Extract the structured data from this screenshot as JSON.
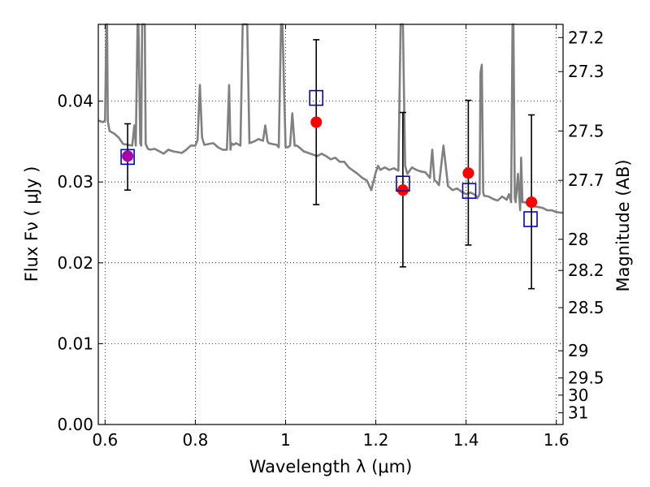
{
  "chart_data": {
    "type": "scatter",
    "title": "",
    "xlabel": "Wavelength  λ (μm)",
    "ylabel": "Flux  Fν  ( μJy )",
    "ylabel_right": "Magnitude (AB)",
    "xlim": [
      0.585,
      1.615
    ],
    "ylim": [
      0.0,
      0.0495
    ],
    "grid": true,
    "x_ticks": [
      0.6,
      0.8,
      1.0,
      1.2,
      1.4,
      1.6
    ],
    "x_tick_labels": [
      "0.6",
      "0.8",
      "1",
      "1.2",
      "1.4",
      "1.6"
    ],
    "y_ticks": [
      0.0,
      0.01,
      0.02,
      0.03,
      0.04
    ],
    "y_tick_labels": [
      "0.00",
      "0.01",
      "0.02",
      "0.03",
      "0.04"
    ],
    "mag_ticks": [
      27.2,
      27.3,
      27.5,
      27.7,
      28,
      28.2,
      28.5,
      29,
      29.5,
      30,
      31
    ],
    "mag_tick_labels": [
      "27.2",
      "27.3",
      "27.5",
      "27.7",
      "28",
      "28.2",
      "28.5",
      "29",
      "29.5",
      "30",
      "31"
    ],
    "colors": {
      "template": "#808080",
      "observed": "#ff0000",
      "model": "#0000cc",
      "first_point": "#aa00aa",
      "errorbar": "#000000"
    },
    "series": [
      {
        "kind": "line",
        "x": [
          0.585,
          0.595,
          0.6,
          0.603,
          0.6045,
          0.606,
          0.61,
          0.62,
          0.63,
          0.64,
          0.66,
          0.665,
          0.668,
          0.672,
          0.674,
          0.678,
          0.68,
          0.682,
          0.685,
          0.688,
          0.69,
          0.695,
          0.7,
          0.71,
          0.72,
          0.73,
          0.74,
          0.75,
          0.76,
          0.77,
          0.78,
          0.79,
          0.8,
          0.805,
          0.81,
          0.815,
          0.82,
          0.83,
          0.84,
          0.85,
          0.86,
          0.87,
          0.875,
          0.878,
          0.88,
          0.885,
          0.89,
          0.9,
          0.905,
          0.91,
          0.915,
          0.92,
          0.93,
          0.94,
          0.95,
          0.955,
          0.96,
          0.963,
          0.97,
          0.98,
          0.985,
          0.99,
          0.993,
          1.0,
          1.005,
          1.01,
          1.015,
          1.02,
          1.025,
          1.03,
          1.04,
          1.05,
          1.06,
          1.07,
          1.08,
          1.09,
          1.1,
          1.11,
          1.12,
          1.13,
          1.14,
          1.15,
          1.16,
          1.17,
          1.18,
          1.19,
          1.2,
          1.205,
          1.21,
          1.22,
          1.23,
          1.24,
          1.25,
          1.255,
          1.26,
          1.265,
          1.27,
          1.28,
          1.29,
          1.3,
          1.31,
          1.32,
          1.325,
          1.33,
          1.335,
          1.34,
          1.35,
          1.36,
          1.37,
          1.38,
          1.39,
          1.4,
          1.41,
          1.42,
          1.425,
          1.43,
          1.432,
          1.435,
          1.438,
          1.44,
          1.45,
          1.46,
          1.47,
          1.48,
          1.49,
          1.495,
          1.5,
          1.503,
          1.505,
          1.508,
          1.51,
          1.515,
          1.52,
          1.522,
          1.525,
          1.53,
          1.54,
          1.55,
          1.56,
          1.57,
          1.58,
          1.59,
          1.6,
          1.61,
          1.615
        ],
        "y": [
          0.0376,
          0.0374,
          0.0376,
          0.0495,
          0.0495,
          0.0375,
          0.0363,
          0.036,
          0.0355,
          0.0347,
          0.0345,
          0.037,
          0.0345,
          0.0495,
          0.0495,
          0.0348,
          0.0345,
          0.0495,
          0.0495,
          0.0495,
          0.0347,
          0.0341,
          0.034,
          0.0341,
          0.0338,
          0.0335,
          0.034,
          0.0338,
          0.0337,
          0.0336,
          0.034,
          0.0345,
          0.0345,
          0.0352,
          0.042,
          0.0355,
          0.0346,
          0.0347,
          0.0348,
          0.0343,
          0.034,
          0.034,
          0.042,
          0.034,
          0.0348,
          0.0346,
          0.0348,
          0.0345,
          0.0495,
          0.0495,
          0.0495,
          0.0348,
          0.035,
          0.0353,
          0.0351,
          0.037,
          0.035,
          0.0348,
          0.0347,
          0.0346,
          0.0343,
          0.0495,
          0.0495,
          0.0343,
          0.0343,
          0.0345,
          0.0385,
          0.0345,
          0.0345,
          0.0343,
          0.0338,
          0.0336,
          0.0334,
          0.0332,
          0.0335,
          0.0332,
          0.0328,
          0.033,
          0.0325,
          0.0325,
          0.0318,
          0.0314,
          0.031,
          0.0305,
          0.0302,
          0.029,
          0.0312,
          0.032,
          0.0315,
          0.0318,
          0.0315,
          0.0317,
          0.0314,
          0.0495,
          0.0495,
          0.032,
          0.031,
          0.0318,
          0.0315,
          0.0313,
          0.0312,
          0.0305,
          0.034,
          0.0302,
          0.03,
          0.0296,
          0.0345,
          0.0295,
          0.029,
          0.0292,
          0.0288,
          0.0285,
          0.0287,
          0.0284,
          0.028,
          0.0285,
          0.0435,
          0.0445,
          0.0287,
          0.0283,
          0.0282,
          0.0279,
          0.0277,
          0.0282,
          0.0278,
          0.0285,
          0.0275,
          0.0495,
          0.0495,
          0.028,
          0.0275,
          0.031,
          0.0265,
          0.033,
          0.0275,
          0.0275,
          0.0272,
          0.027,
          0.0269,
          0.0268,
          0.0265,
          0.0265,
          0.0263,
          0.0262,
          0.0262
        ]
      },
      {
        "kind": "points",
        "marker": "circle",
        "x": [
          0.65,
          1.068,
          1.26,
          1.405,
          1.545
        ],
        "y": [
          0.0332,
          0.0374,
          0.029,
          0.0311,
          0.0275
        ],
        "yerr_low": [
          0.029,
          0.0272,
          0.0195,
          0.0222,
          0.0168
        ],
        "yerr_high": [
          0.0372,
          0.0476,
          0.0386,
          0.0401,
          0.0383
        ]
      },
      {
        "kind": "points",
        "marker": "square",
        "x": [
          0.65,
          1.068,
          1.26,
          1.407,
          1.543
        ],
        "y": [
          0.0331,
          0.0404,
          0.0298,
          0.0289,
          0.0254
        ]
      }
    ]
  }
}
